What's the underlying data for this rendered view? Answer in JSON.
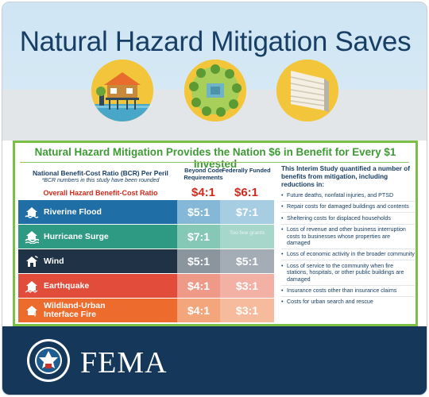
{
  "title": "Natural Hazard Mitigation Saves",
  "subtitle": "Natural Hazard Mitigation Provides the Nation $6 in Benefit for Every $1 Invested",
  "table": {
    "bcr_title": "National Benefit-Cost Ratio (BCR) Per Peril",
    "bcr_note": "*BCR numbers in this study have been rounded",
    "overall_label": "Overall Hazard Benefit-Cost Ratio",
    "col1_header": "Beyond Code Requirements",
    "col2_header": "Federally Funded",
    "overall": {
      "code": "$4:1",
      "federal": "$6:1"
    },
    "rows": [
      {
        "name": "Riverine Flood",
        "icon": "house-flood-icon",
        "code": "$5:1",
        "federal": "$7:1",
        "color": "#1f6fa6",
        "code_color": "#84b8d6",
        "fed_color": "#a6cde2"
      },
      {
        "name": "Hurricane Surge",
        "icon": "house-surge-icon",
        "code": "$7:1",
        "federal": "Too few grants",
        "color": "#2f9a83",
        "code_color": "#86c8b6",
        "fed_color": "#a6d7ca"
      },
      {
        "name": "Wind",
        "icon": "house-wind-icon",
        "code": "$5:1",
        "federal": "$5:1",
        "color": "#1f3246",
        "code_color": "#8a959e",
        "fed_color": "#a4adb5"
      },
      {
        "name": "Earthquake",
        "icon": "house-earthquake-icon",
        "code": "$4:1",
        "federal": "$3:1",
        "color": "#e14c3b",
        "code_color": "#ef9a89",
        "fed_color": "#f3b1a5"
      },
      {
        "name": "Wildland-Urban Interface Fire",
        "name_line1": "Wildland-Urban",
        "name_line2": "Interface Fire",
        "icon": "house-fire-icon",
        "code": "$4:1",
        "federal": "$3:1",
        "color": "#ec6b2d",
        "code_color": "#f3a57b",
        "fed_color": "#f6bb9c"
      }
    ]
  },
  "info": {
    "heading": "This Interim Study quantified a number of benefits from mitigation, including reductions in:",
    "items": [
      "Future deaths, nonfatal injuries, and PTSD",
      "Repair costs for damaged buildings and contents",
      "Sheltering costs for displaced households",
      "Loss of revenue and other business interruption costs to businesses whose properties are damaged",
      "Loss of economic activity in the broader community",
      "Loss of service to the community when fire stations, hospitals, or other public buildings are damaged",
      "Insurance costs other than insurance claims",
      "Costs for urban search and rescue"
    ]
  },
  "footer": {
    "agency": "FEMA",
    "seal_text": "U.S. DEPARTMENT OF HOMELAND SECURITY"
  },
  "colors": {
    "navy": "#14375a",
    "green": "#7bbf44",
    "red": "#d02a1c",
    "sky": "#cfe5f3",
    "gold": "#f2c53a"
  }
}
